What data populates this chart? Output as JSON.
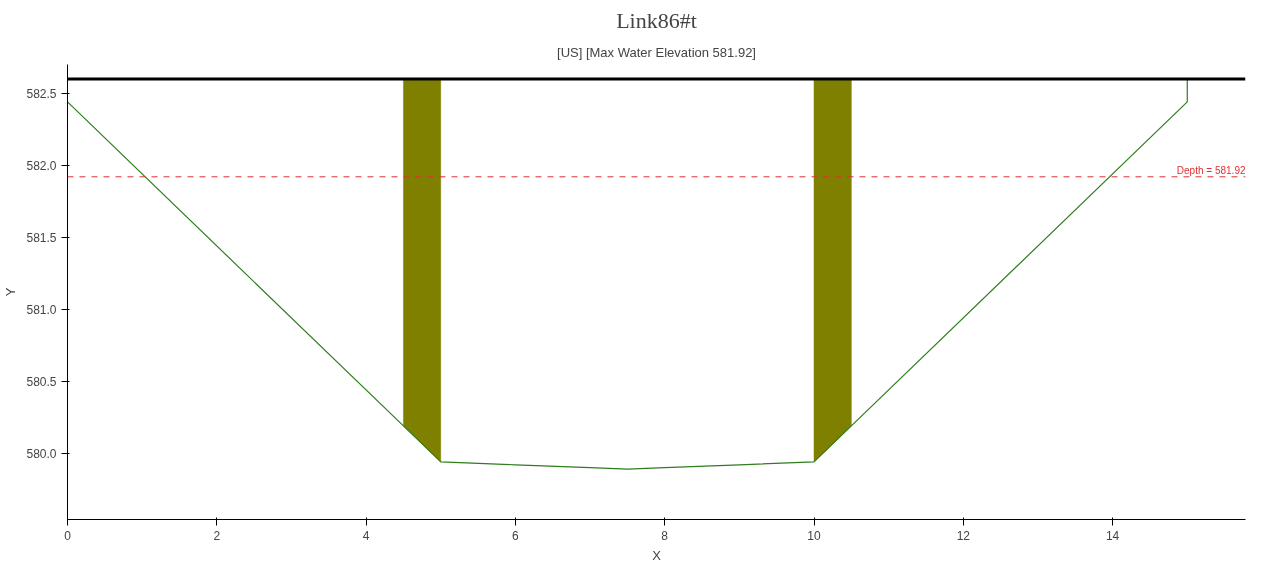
{
  "chart_data": {
    "type": "line",
    "title": "Link86#t",
    "subtitle": "[US] [Max Water Elevation 581.92]",
    "xlabel": "X",
    "ylabel": "Y",
    "xlim": [
      0,
      15.78
    ],
    "xticks": [
      0,
      2,
      4,
      6,
      8,
      10,
      12,
      14
    ],
    "ylim": [
      579.54,
      582.7
    ],
    "yticks": [
      {
        "value": 580,
        "label": "580.0"
      },
      {
        "value": 580.5,
        "label": "580.5"
      },
      {
        "value": 581,
        "label": "581.0"
      },
      {
        "value": 581.5,
        "label": "581.5"
      },
      {
        "value": 582,
        "label": "582.0"
      },
      {
        "value": 582.5,
        "label": "582.5"
      }
    ],
    "grid": false,
    "marker": "none",
    "line_style": "solid",
    "series": [
      {
        "type": "area",
        "color": "#808000",
        "x": [
          4.5,
          4.5,
          5.0,
          5.0
        ],
        "values": [
          580.19,
          582.6,
          582.6,
          579.94
        ]
      },
      {
        "type": "area",
        "color": "#808000",
        "x": [
          10.0,
          10.0,
          10.5,
          10.5
        ],
        "values": [
          579.94,
          582.6,
          582.6,
          580.19
        ]
      },
      {
        "color": "#2e7d1e",
        "x": [
          0,
          4.5,
          5.0,
          6.0,
          7.0,
          7.5,
          8.0,
          9.0,
          10.0,
          10.5,
          15.0,
          15.0
        ],
        "values": [
          582.44,
          580.19,
          579.94,
          579.92,
          579.9,
          579.89,
          579.9,
          579.92,
          579.94,
          580.19,
          582.44,
          582.6
        ]
      },
      {
        "color": "#000000",
        "x": [
          0,
          15.78
        ],
        "values": [
          582.6,
          582.6
        ]
      }
    ],
    "ref_lines": [
      {
        "axis": "y",
        "value": 581.92,
        "label": "Depth = 581.92",
        "color": "#e03030",
        "line_style": "dashed"
      }
    ]
  }
}
